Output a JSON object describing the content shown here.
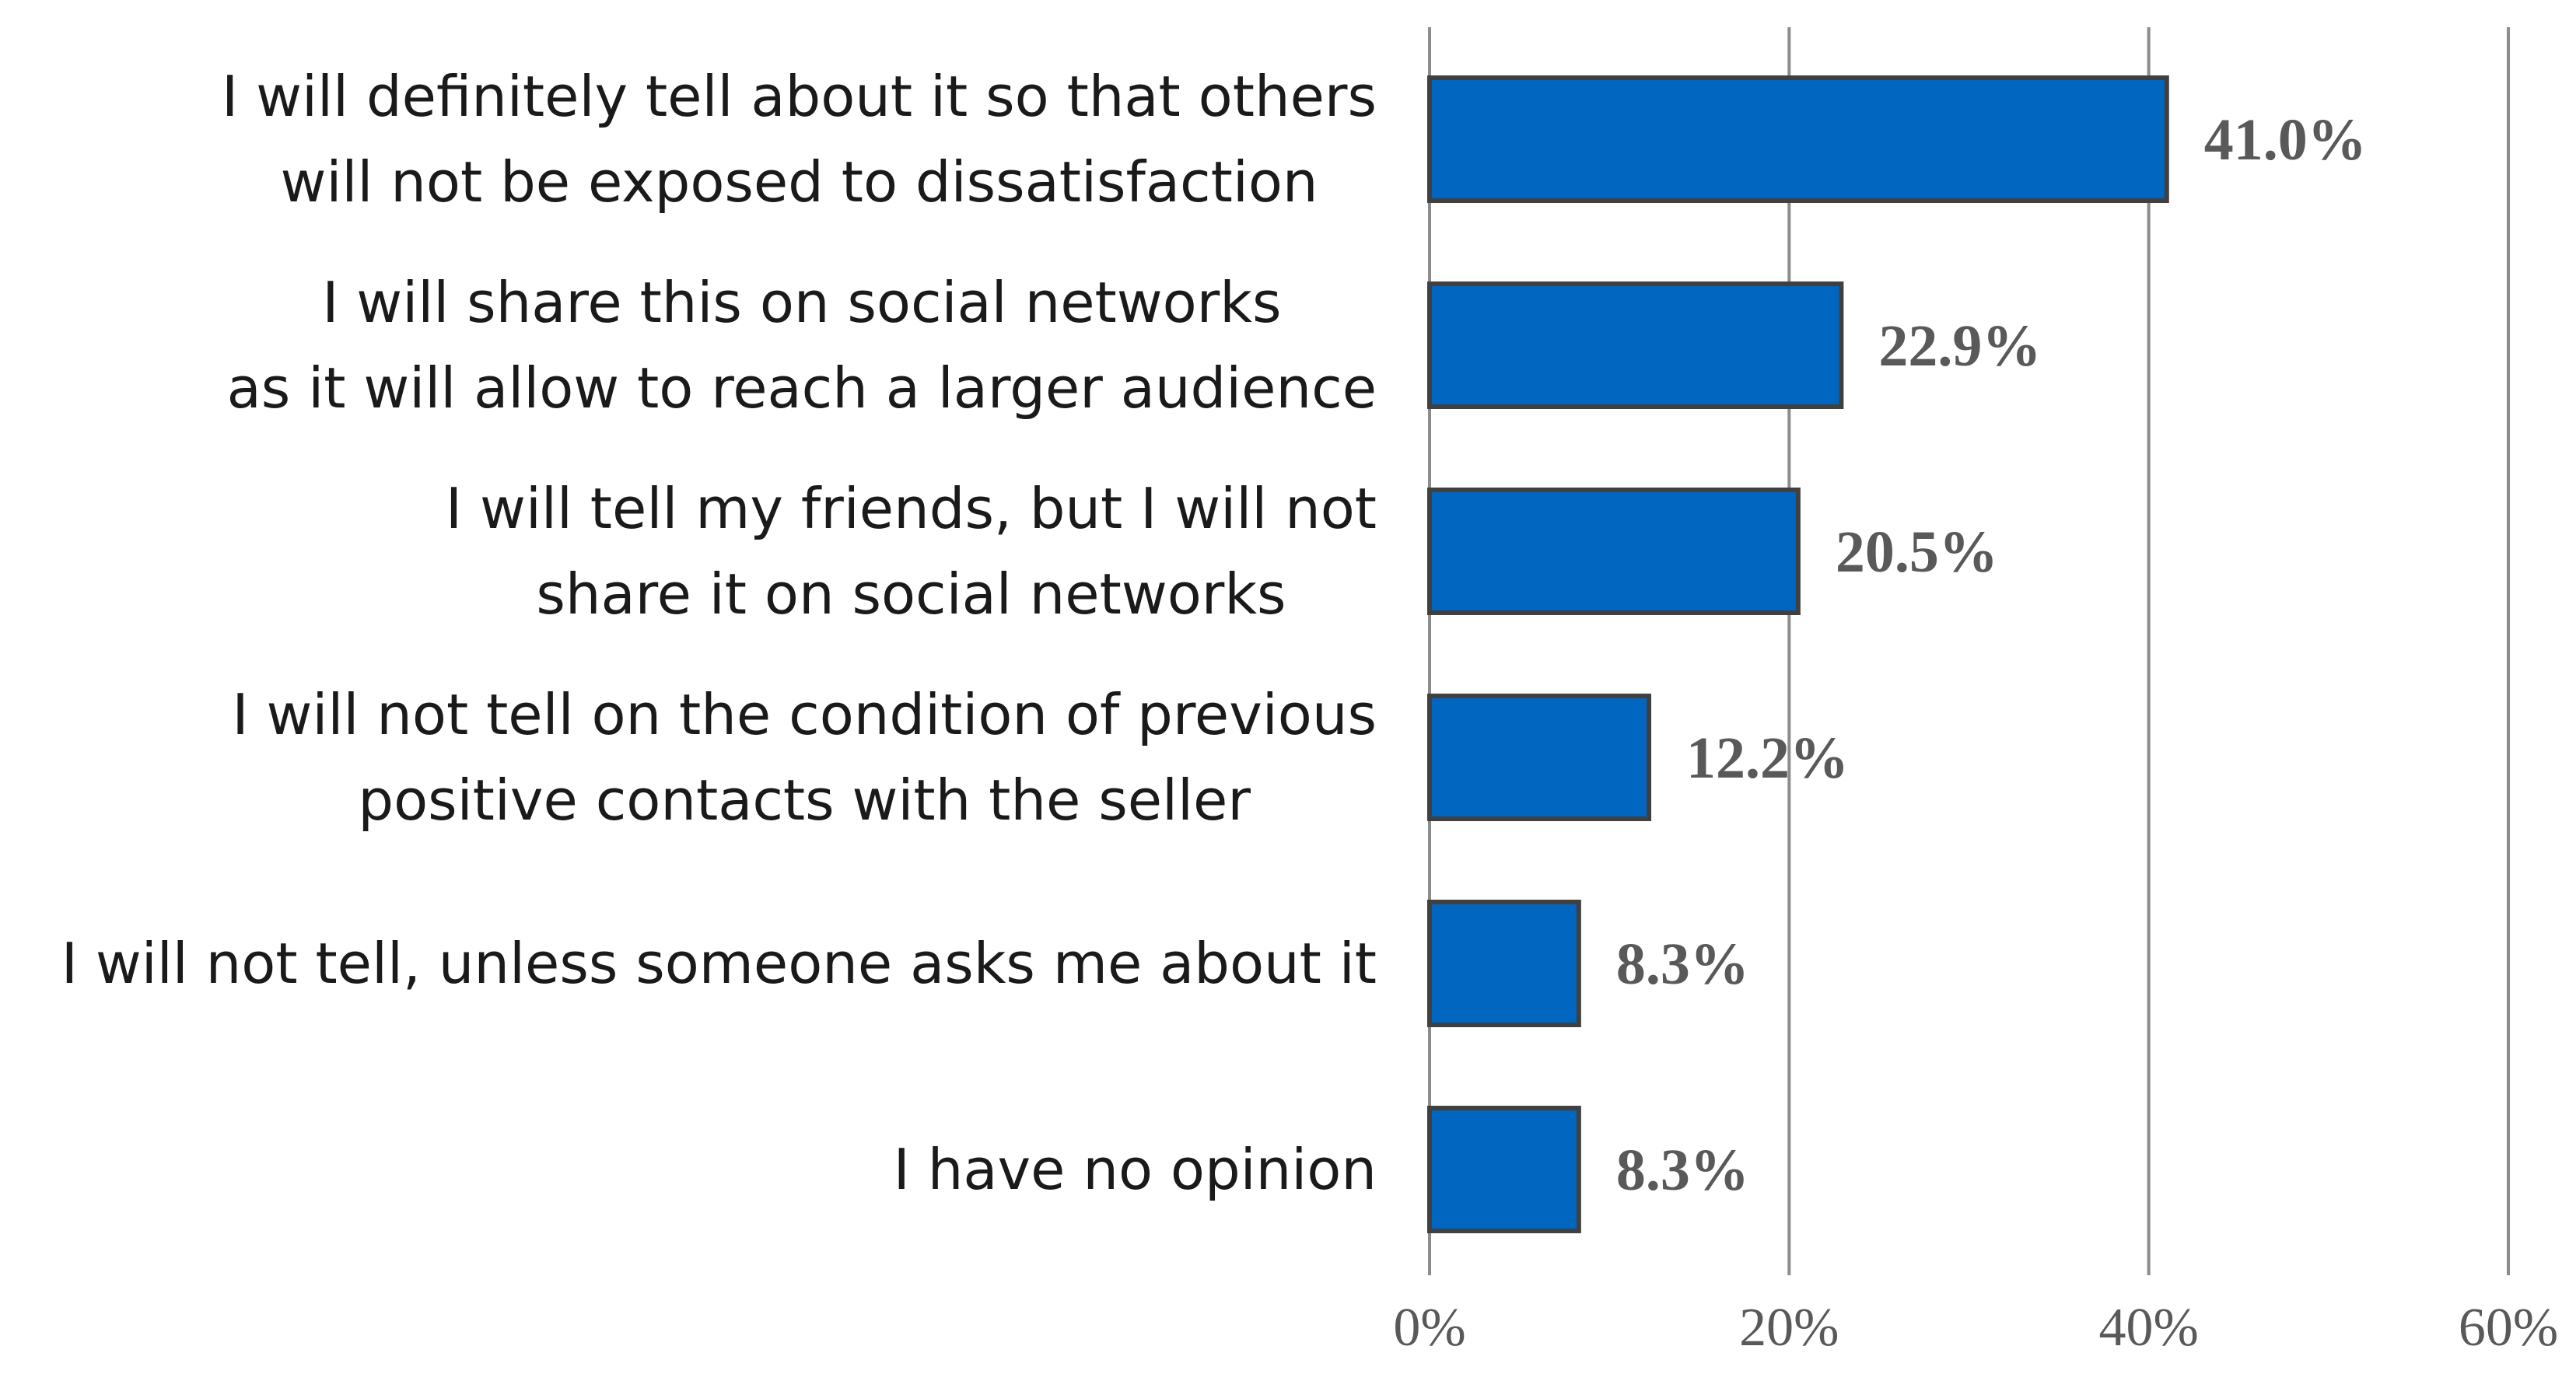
{
  "colors": {
    "bar_fill": "#0066c0",
    "bar_stroke": "#404040",
    "grid": "#8c8c8c",
    "value_text": "#595959",
    "label_text": "#1a1a1a"
  },
  "chart_data": {
    "type": "bar",
    "orientation": "horizontal",
    "title": "",
    "xlabel": "",
    "ylabel": "",
    "categories": [
      [
        "I will definitely tell about it so that others",
        "will not be exposed to dissatisfaction"
      ],
      [
        "I will share this on social networks",
        "as it will allow to reach a larger audience"
      ],
      [
        "I will tell my friends, but I will not",
        "share it on social networks"
      ],
      [
        "I will not tell on the condition of previous",
        "positive contacts with the seller"
      ],
      [
        "I will not tell, unless someone asks me about it"
      ],
      [
        "I have no opinion"
      ]
    ],
    "values": [
      41.0,
      22.9,
      20.5,
      12.2,
      8.3,
      8.3
    ],
    "value_labels": [
      "41.0%",
      "22.9%",
      "20.5%",
      "12.2%",
      "8.3%",
      "8.3%"
    ],
    "xlim": [
      0,
      60
    ],
    "ticks": [
      0,
      20,
      40,
      60
    ],
    "tick_labels": [
      "0%",
      "20%",
      "40%",
      "60%"
    ],
    "grid": true,
    "legend": "none"
  }
}
